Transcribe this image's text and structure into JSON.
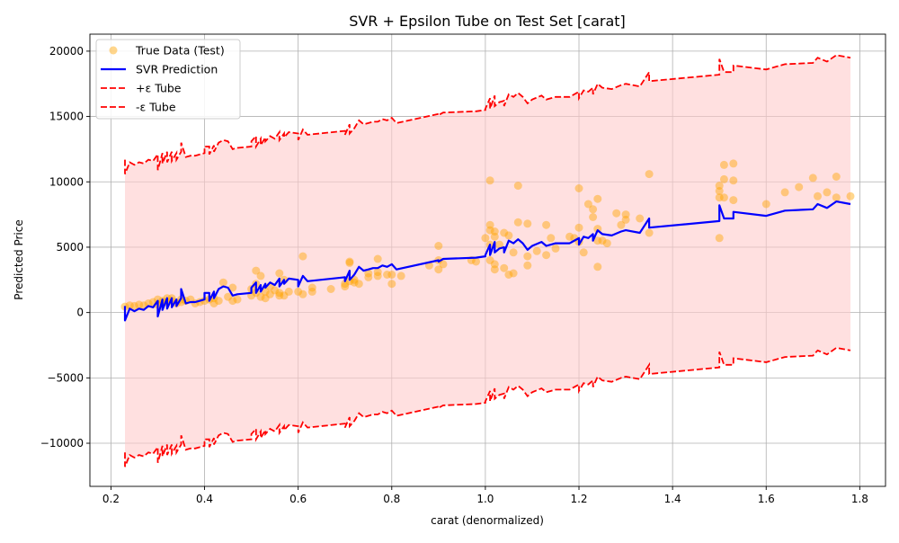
{
  "chart_data": {
    "type": "line",
    "title": "SVR + Epsilon Tube on Test Set [carat]",
    "xlabel": "carat (denormalized)",
    "ylabel": "Predicted Price",
    "xlim": [
      0.155,
      1.855
    ],
    "ylim": [
      -13300,
      21300
    ],
    "xticks": [
      0.2,
      0.4,
      0.6,
      0.8,
      1.0,
      1.2,
      1.4,
      1.6,
      1.8
    ],
    "xtick_labels": [
      "0.2",
      "0.4",
      "0.6",
      "0.8",
      "1.0",
      "1.2",
      "1.4",
      "1.6",
      "1.8"
    ],
    "yticks": [
      -10000,
      -5000,
      0,
      5000,
      10000,
      15000,
      20000
    ],
    "ytick_labels": [
      "−10000",
      "−5000",
      "0",
      "5000",
      "10000",
      "15000",
      "20000"
    ],
    "grid": true,
    "legend_position": "top-left",
    "epsilon": 11200,
    "colors": {
      "scatter": "#ffa500",
      "prediction": "#0000ff",
      "tube": "#ff0000",
      "tube_fill": "#ffcccc"
    },
    "legend": [
      {
        "label": "True Data (Test)",
        "kind": "scatter"
      },
      {
        "label": "SVR Prediction",
        "kind": "prediction"
      },
      {
        "label": "+ε Tube",
        "kind": "tube"
      },
      {
        "label": "-ε Tube",
        "kind": "tube"
      }
    ],
    "series": [
      {
        "name": "SVR Prediction",
        "x": [
          0.23,
          0.23,
          0.24,
          0.25,
          0.26,
          0.27,
          0.28,
          0.29,
          0.3,
          0.3,
          0.31,
          0.31,
          0.32,
          0.32,
          0.33,
          0.33,
          0.34,
          0.34,
          0.35,
          0.35,
          0.36,
          0.37,
          0.38,
          0.39,
          0.4,
          0.4,
          0.41,
          0.41,
          0.42,
          0.42,
          0.43,
          0.44,
          0.45,
          0.46,
          0.47,
          0.5,
          0.5,
          0.51,
          0.51,
          0.52,
          0.52,
          0.53,
          0.53,
          0.54,
          0.55,
          0.56,
          0.56,
          0.57,
          0.57,
          0.58,
          0.6,
          0.6,
          0.61,
          0.62,
          0.7,
          0.7,
          0.71,
          0.71,
          0.72,
          0.73,
          0.74,
          0.75,
          0.76,
          0.77,
          0.78,
          0.79,
          0.8,
          0.81,
          0.9,
          0.9,
          0.91,
          0.98,
          1.0,
          1.0,
          1.01,
          1.01,
          1.02,
          1.02,
          1.03,
          1.04,
          1.04,
          1.05,
          1.06,
          1.07,
          1.08,
          1.09,
          1.1,
          1.12,
          1.13,
          1.14,
          1.15,
          1.18,
          1.2,
          1.2,
          1.21,
          1.22,
          1.23,
          1.23,
          1.24,
          1.25,
          1.27,
          1.29,
          1.3,
          1.33,
          1.35,
          1.35,
          1.5,
          1.5,
          1.51,
          1.53,
          1.53,
          1.6,
          1.64,
          1.7,
          1.71,
          1.73,
          1.75,
          1.78
        ],
        "y": [
          500,
          -600,
          300,
          100,
          300,
          200,
          500,
          400,
          900,
          -300,
          1000,
          200,
          1100,
          300,
          1100,
          400,
          1000,
          500,
          1100,
          1800,
          700,
          800,
          800,
          900,
          1000,
          1500,
          1500,
          900,
          1600,
          1100,
          1800,
          2000,
          1900,
          1300,
          1400,
          1500,
          1900,
          2300,
          1500,
          2100,
          1600,
          2200,
          1900,
          2300,
          2100,
          2600,
          2000,
          2500,
          2200,
          2600,
          2500,
          2000,
          2800,
          2400,
          2700,
          2400,
          3200,
          2500,
          2900,
          3500,
          3200,
          3300,
          3400,
          3400,
          3600,
          3500,
          3700,
          3300,
          4000,
          3900,
          4100,
          4200,
          4300,
          4400,
          5200,
          4400,
          5400,
          4600,
          4900,
          5000,
          4600,
          5500,
          5300,
          5600,
          5300,
          4800,
          5100,
          5400,
          5100,
          5200,
          5300,
          5300,
          5700,
          5200,
          5800,
          5700,
          6000,
          5500,
          6300,
          6000,
          5900,
          6200,
          6300,
          6100,
          7200,
          6500,
          7000,
          8200,
          7200,
          7200,
          7700,
          7400,
          7800,
          7900,
          8300,
          8000,
          8500,
          8300
        ]
      },
      {
        "name": "True Data (Test)",
        "x": [
          0.23,
          0.24,
          0.25,
          0.26,
          0.27,
          0.28,
          0.29,
          0.3,
          0.3,
          0.31,
          0.31,
          0.32,
          0.32,
          0.33,
          0.33,
          0.34,
          0.35,
          0.35,
          0.36,
          0.37,
          0.38,
          0.39,
          0.4,
          0.41,
          0.42,
          0.42,
          0.43,
          0.44,
          0.45,
          0.46,
          0.46,
          0.47,
          0.5,
          0.5,
          0.51,
          0.51,
          0.51,
          0.52,
          0.52,
          0.53,
          0.53,
          0.54,
          0.54,
          0.55,
          0.56,
          0.56,
          0.56,
          0.57,
          0.57,
          0.58,
          0.6,
          0.61,
          0.61,
          0.63,
          0.63,
          0.67,
          0.7,
          0.7,
          0.71,
          0.71,
          0.71,
          0.72,
          0.72,
          0.73,
          0.75,
          0.75,
          0.77,
          0.77,
          0.77,
          0.79,
          0.8,
          0.8,
          0.82,
          0.88,
          0.9,
          0.9,
          0.9,
          0.91,
          0.97,
          0.98,
          1.0,
          1.01,
          1.01,
          1.01,
          1.01,
          1.01,
          1.02,
          1.02,
          1.02,
          1.02,
          1.03,
          1.04,
          1.04,
          1.05,
          1.05,
          1.06,
          1.06,
          1.07,
          1.07,
          1.09,
          1.09,
          1.09,
          1.11,
          1.13,
          1.13,
          1.14,
          1.15,
          1.18,
          1.19,
          1.2,
          1.2,
          1.2,
          1.21,
          1.22,
          1.23,
          1.23,
          1.24,
          1.24,
          1.24,
          1.24,
          1.25,
          1.26,
          1.28,
          1.29,
          1.3,
          1.3,
          1.33,
          1.35,
          1.35,
          1.5,
          1.5,
          1.5,
          1.5,
          1.51,
          1.51,
          1.51,
          1.53,
          1.53,
          1.53,
          1.6,
          1.64,
          1.67,
          1.7,
          1.71,
          1.73,
          1.75,
          1.75,
          1.78
        ],
        "y": [
          450,
          550,
          500,
          600,
          550,
          700,
          800,
          600,
          1000,
          700,
          900,
          800,
          1100,
          900,
          1100,
          700,
          1000,
          800,
          900,
          1000,
          700,
          800,
          900,
          1000,
          700,
          1100,
          900,
          2300,
          1200,
          900,
          1900,
          1000,
          1800,
          1300,
          1500,
          3200,
          2200,
          2800,
          1200,
          1600,
          1100,
          2000,
          1400,
          1700,
          1300,
          3000,
          1500,
          2500,
          1300,
          1600,
          1600,
          1400,
          4300,
          1600,
          1900,
          1800,
          2000,
          2200,
          3900,
          3800,
          2400,
          2300,
          2500,
          2200,
          2700,
          3000,
          2800,
          4100,
          3100,
          2900,
          2200,
          2900,
          2800,
          3600,
          5100,
          3300,
          4000,
          3700,
          4000,
          3900,
          5700,
          10100,
          6700,
          6300,
          5200,
          4000,
          6200,
          3300,
          5800,
          3700,
          5200,
          3400,
          6100,
          2900,
          5900,
          3000,
          4600,
          9700,
          6900,
          6800,
          4300,
          3600,
          4700,
          6700,
          4400,
          5700,
          4900,
          5800,
          5700,
          9500,
          6500,
          5400,
          4600,
          8300,
          7300,
          7900,
          8700,
          6400,
          5500,
          3500,
          5500,
          5300,
          7600,
          6700,
          7500,
          7100,
          7200,
          10600,
          6100,
          9700,
          9300,
          8800,
          5700,
          11300,
          10200,
          8800,
          11400,
          10100,
          8600,
          8300,
          9200,
          9600,
          10300,
          8900,
          9200,
          10400,
          8800,
          8900
        ]
      }
    ]
  }
}
